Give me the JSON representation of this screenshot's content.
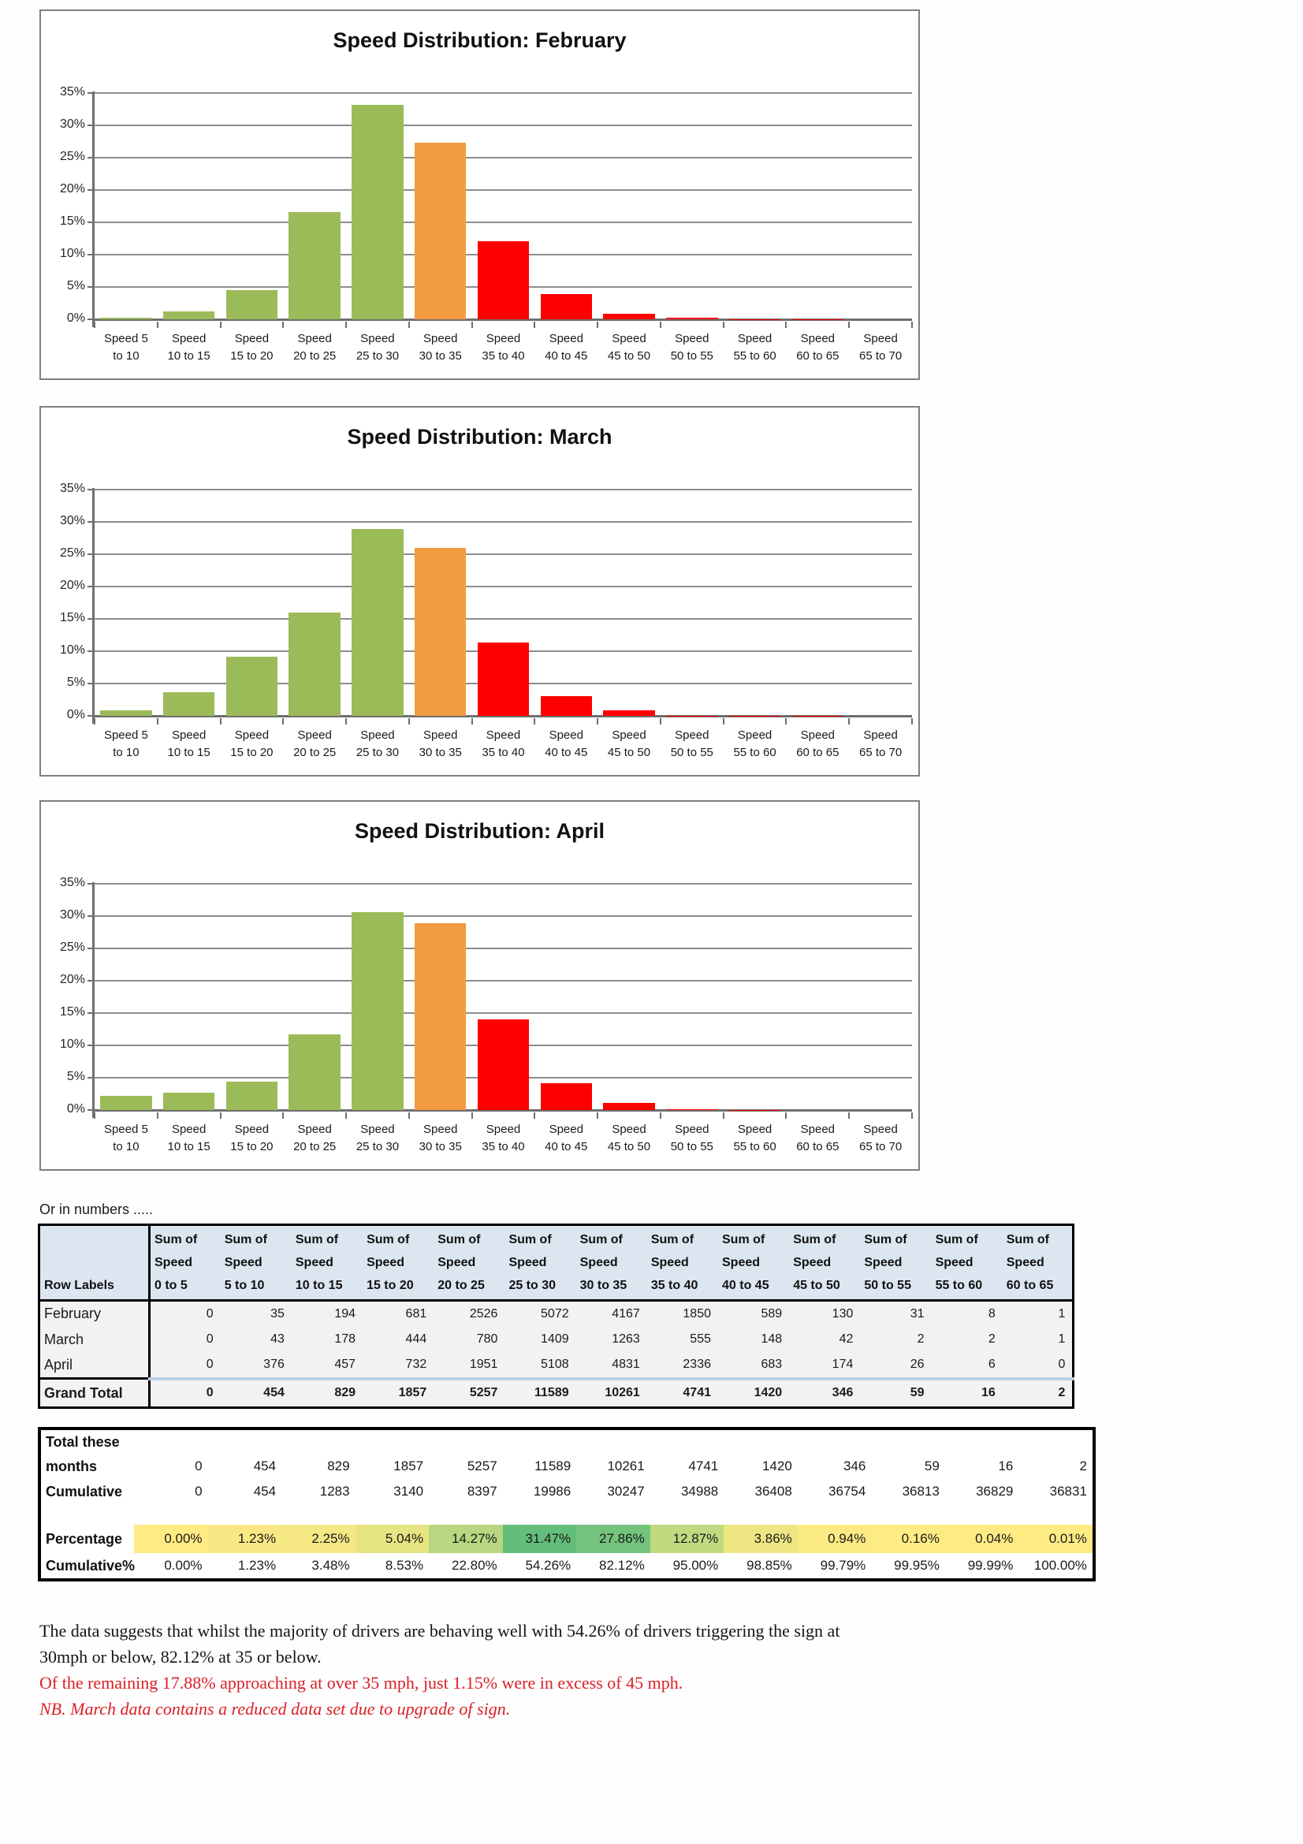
{
  "palette": {
    "green": "#9bbb59",
    "orange": "#f29b40",
    "red": "#fd0000",
    "header_blue": "#dce6f1",
    "table_row_bg": "#f2f2f2",
    "blue_rule": "#b9cfe4",
    "note_red": "#da2025",
    "note_black": "#141414"
  },
  "y_tick_labels": [
    "0%",
    "5%",
    "10%",
    "15%",
    "20%",
    "25%",
    "30%",
    "35%"
  ],
  "chart_data": [
    {
      "type": "bar",
      "title": "Speed Distribution: February",
      "categories": [
        "Speed 5 to 10",
        "Speed 10 to 15",
        "Speed 15 to 20",
        "Speed 20 to 25",
        "Speed 25 to 30",
        "Speed 30 to 35",
        "Speed 35 to 40",
        "Speed 40 to 45",
        "Speed 45 to 50",
        "Speed 50 to 55",
        "Speed 55 to 60",
        "Speed 60 to 65",
        "Speed 65 to 70"
      ],
      "categories_display": [
        [
          "Speed 5",
          "to 10"
        ],
        [
          "Speed",
          "10 to 15"
        ],
        [
          "Speed",
          "15 to 20"
        ],
        [
          "Speed",
          "20 to 25"
        ],
        [
          "Speed",
          "25 to 30"
        ],
        [
          "Speed",
          "30 to 35"
        ],
        [
          "Speed",
          "35 to 40"
        ],
        [
          "Speed",
          "40 to 45"
        ],
        [
          "Speed",
          "45 to 50"
        ],
        [
          "Speed",
          "50 to 55"
        ],
        [
          "Speed",
          "55 to 60"
        ],
        [
          "Speed",
          "60 to 65"
        ],
        [
          "Speed",
          "65 to 70"
        ]
      ],
      "values": [
        0.23,
        1.27,
        4.46,
        16.53,
        33.18,
        27.26,
        12.1,
        3.85,
        0.85,
        0.2,
        0.05,
        0.01,
        0
      ],
      "bar_colors": [
        "#9bbb59",
        "#9bbb59",
        "#9bbb59",
        "#9bbb59",
        "#9bbb59",
        "#f29b40",
        "#fd0000",
        "#fd0000",
        "#fd0000",
        "#fd0000",
        "#fd0000",
        "#fd0000",
        "#fd0000"
      ],
      "ylim": [
        0,
        35
      ],
      "ytick_step": 5,
      "grid": true,
      "legend": false
    },
    {
      "type": "bar",
      "title": "Speed Distribution: March",
      "categories": [
        "Speed 5 to 10",
        "Speed 10 to 15",
        "Speed 15 to 20",
        "Speed 20 to 25",
        "Speed 25 to 30",
        "Speed 30 to 35",
        "Speed 35 to 40",
        "Speed 40 to 45",
        "Speed 45 to 50",
        "Speed 50 to 55",
        "Speed 55 to 60",
        "Speed 60 to 65",
        "Speed 65 to 70"
      ],
      "categories_display": [
        [
          "Speed 5",
          "to 10"
        ],
        [
          "Speed",
          "10 to 15"
        ],
        [
          "Speed",
          "15 to 20"
        ],
        [
          "Speed",
          "20 to 25"
        ],
        [
          "Speed",
          "25 to 30"
        ],
        [
          "Speed",
          "30 to 35"
        ],
        [
          "Speed",
          "35 to 40"
        ],
        [
          "Speed",
          "40 to 45"
        ],
        [
          "Speed",
          "45 to 50"
        ],
        [
          "Speed",
          "50 to 55"
        ],
        [
          "Speed",
          "55 to 60"
        ],
        [
          "Speed",
          "60 to 65"
        ],
        [
          "Speed",
          "65 to 70"
        ]
      ],
      "values": [
        0.88,
        3.66,
        9.12,
        16.03,
        28.95,
        25.95,
        11.4,
        3.04,
        0.86,
        0.04,
        0.04,
        0.02,
        0
      ],
      "bar_colors": [
        "#9bbb59",
        "#9bbb59",
        "#9bbb59",
        "#9bbb59",
        "#9bbb59",
        "#f29b40",
        "#fd0000",
        "#fd0000",
        "#fd0000",
        "#fd0000",
        "#fd0000",
        "#fd0000",
        "#fd0000"
      ],
      "ylim": [
        0,
        35
      ],
      "ytick_step": 5,
      "grid": true,
      "legend": false
    },
    {
      "type": "bar",
      "title": "Speed Distribution: April",
      "categories": [
        "Speed 5 to 10",
        "Speed 10 to 15",
        "Speed 15 to 20",
        "Speed 20 to 25",
        "Speed 25 to 30",
        "Speed 30 to 35",
        "Speed 35 to 40",
        "Speed 40 to 45",
        "Speed 45 to 50",
        "Speed 50 to 55",
        "Speed 55 to 60",
        "Speed 60 to 65",
        "Speed 65 to 70"
      ],
      "categories_display": [
        [
          "Speed 5",
          "to 10"
        ],
        [
          "Speed",
          "10 to 15"
        ],
        [
          "Speed",
          "15 to 20"
        ],
        [
          "Speed",
          "20 to 25"
        ],
        [
          "Speed",
          "25 to 30"
        ],
        [
          "Speed",
          "30 to 35"
        ],
        [
          "Speed",
          "35 to 40"
        ],
        [
          "Speed",
          "40 to 45"
        ],
        [
          "Speed",
          "45 to 50"
        ],
        [
          "Speed",
          "50 to 55"
        ],
        [
          "Speed",
          "55 to 60"
        ],
        [
          "Speed",
          "60 to 65"
        ],
        [
          "Speed",
          "65 to 70"
        ]
      ],
      "values": [
        2.25,
        2.74,
        4.39,
        11.7,
        30.62,
        28.96,
        14.0,
        4.09,
        1.04,
        0.16,
        0.04,
        0,
        0
      ],
      "bar_colors": [
        "#9bbb59",
        "#9bbb59",
        "#9bbb59",
        "#9bbb59",
        "#9bbb59",
        "#f29b40",
        "#fd0000",
        "#fd0000",
        "#fd0000",
        "#fd0000",
        "#fd0000",
        "#fd0000",
        "#fd0000"
      ],
      "ylim": [
        0,
        35
      ],
      "ytick_step": 5,
      "grid": true,
      "legend": false
    }
  ],
  "or_label": "Or in numbers .....",
  "pivot_table": {
    "corner_label": "Row Labels",
    "col_headers": [
      [
        "Sum of",
        "Speed",
        "0 to 5"
      ],
      [
        "Sum of",
        "Speed",
        "5 to 10"
      ],
      [
        "Sum of",
        "Speed",
        "10 to 15"
      ],
      [
        "Sum of",
        "Speed",
        "15 to 20"
      ],
      [
        "Sum of",
        "Speed",
        "20 to 25"
      ],
      [
        "Sum of",
        "Speed",
        "25 to 30"
      ],
      [
        "Sum of",
        "Speed",
        "30 to 35"
      ],
      [
        "Sum of",
        "Speed",
        "35 to 40"
      ],
      [
        "Sum of",
        "Speed",
        "40 to 45"
      ],
      [
        "Sum of",
        "Speed",
        "45 to 50"
      ],
      [
        "Sum of",
        "Speed",
        "50 to 55"
      ],
      [
        "Sum of",
        "Speed",
        "55 to 60"
      ],
      [
        "Sum of",
        "Speed",
        "60 to 65"
      ]
    ],
    "rows": [
      {
        "label": "February",
        "values": [
          0,
          35,
          194,
          681,
          2526,
          5072,
          4167,
          1850,
          589,
          130,
          31,
          8,
          1
        ]
      },
      {
        "label": "March",
        "values": [
          0,
          43,
          178,
          444,
          780,
          1409,
          1263,
          555,
          148,
          42,
          2,
          2,
          1
        ]
      },
      {
        "label": "April",
        "values": [
          0,
          376,
          457,
          732,
          1951,
          5108,
          4831,
          2336,
          683,
          174,
          26,
          6,
          0
        ]
      }
    ],
    "grand_total": {
      "label": "Grand Total",
      "values": [
        0,
        454,
        829,
        1857,
        5257,
        11589,
        10261,
        4741,
        1420,
        346,
        59,
        16,
        2
      ]
    }
  },
  "totals_table": {
    "total_label_line1": "Total these",
    "total_label_line2": "months",
    "total_values": [
      0,
      454,
      829,
      1857,
      5257,
      11589,
      10261,
      4741,
      1420,
      346,
      59,
      16,
      2
    ],
    "cumulative_label": "Cumulative",
    "cumulative_values": [
      0,
      454,
      1283,
      3140,
      8397,
      19986,
      30247,
      34988,
      36408,
      36754,
      36813,
      36829,
      36831
    ],
    "percentage_label": "Percentage",
    "percentage_cells": [
      {
        "text": "0.00%",
        "bg": "#ffeb84"
      },
      {
        "text": "1.23%",
        "bg": "#f9e984"
      },
      {
        "text": "2.25%",
        "bg": "#f5e884"
      },
      {
        "text": "5.04%",
        "bg": "#e7e483"
      },
      {
        "text": "14.27%",
        "bg": "#b7d780"
      },
      {
        "text": "31.47%",
        "bg": "#63be7b"
      },
      {
        "text": "27.86%",
        "bg": "#74c37c"
      },
      {
        "text": "12.87%",
        "bg": "#c0da80"
      },
      {
        "text": "3.86%",
        "bg": "#ede683"
      },
      {
        "text": "0.94%",
        "bg": "#fbea84"
      },
      {
        "text": "0.16%",
        "bg": "#ffeb84"
      },
      {
        "text": "0.04%",
        "bg": "#ffeb84"
      },
      {
        "text": "0.01%",
        "bg": "#ffeb84"
      }
    ],
    "cumulative_pct_label": "Cumulative%",
    "cumulative_pct_values": [
      "0.00%",
      "1.23%",
      "3.48%",
      "8.53%",
      "22.80%",
      "54.26%",
      "82.12%",
      "95.00%",
      "98.85%",
      "99.79%",
      "99.95%",
      "99.99%",
      "100.00%"
    ]
  },
  "notes": [
    {
      "text": "The data suggests that whilst the majority of drivers are behaving well with 54.26% of drivers triggering the sign at",
      "color": "#141414",
      "italic": false
    },
    {
      "text": "30mph or below, 82.12% at 35 or below.",
      "color": "#141414",
      "italic": false
    },
    {
      "text": "Of the remaining 17.88% approaching at over 35 mph, just 1.15% were in excess of 45 mph.",
      "color": "#da2025",
      "italic": false
    },
    {
      "text": "NB. March data contains a reduced data set due to upgrade of sign.",
      "color": "#da2025",
      "italic": true
    }
  ]
}
